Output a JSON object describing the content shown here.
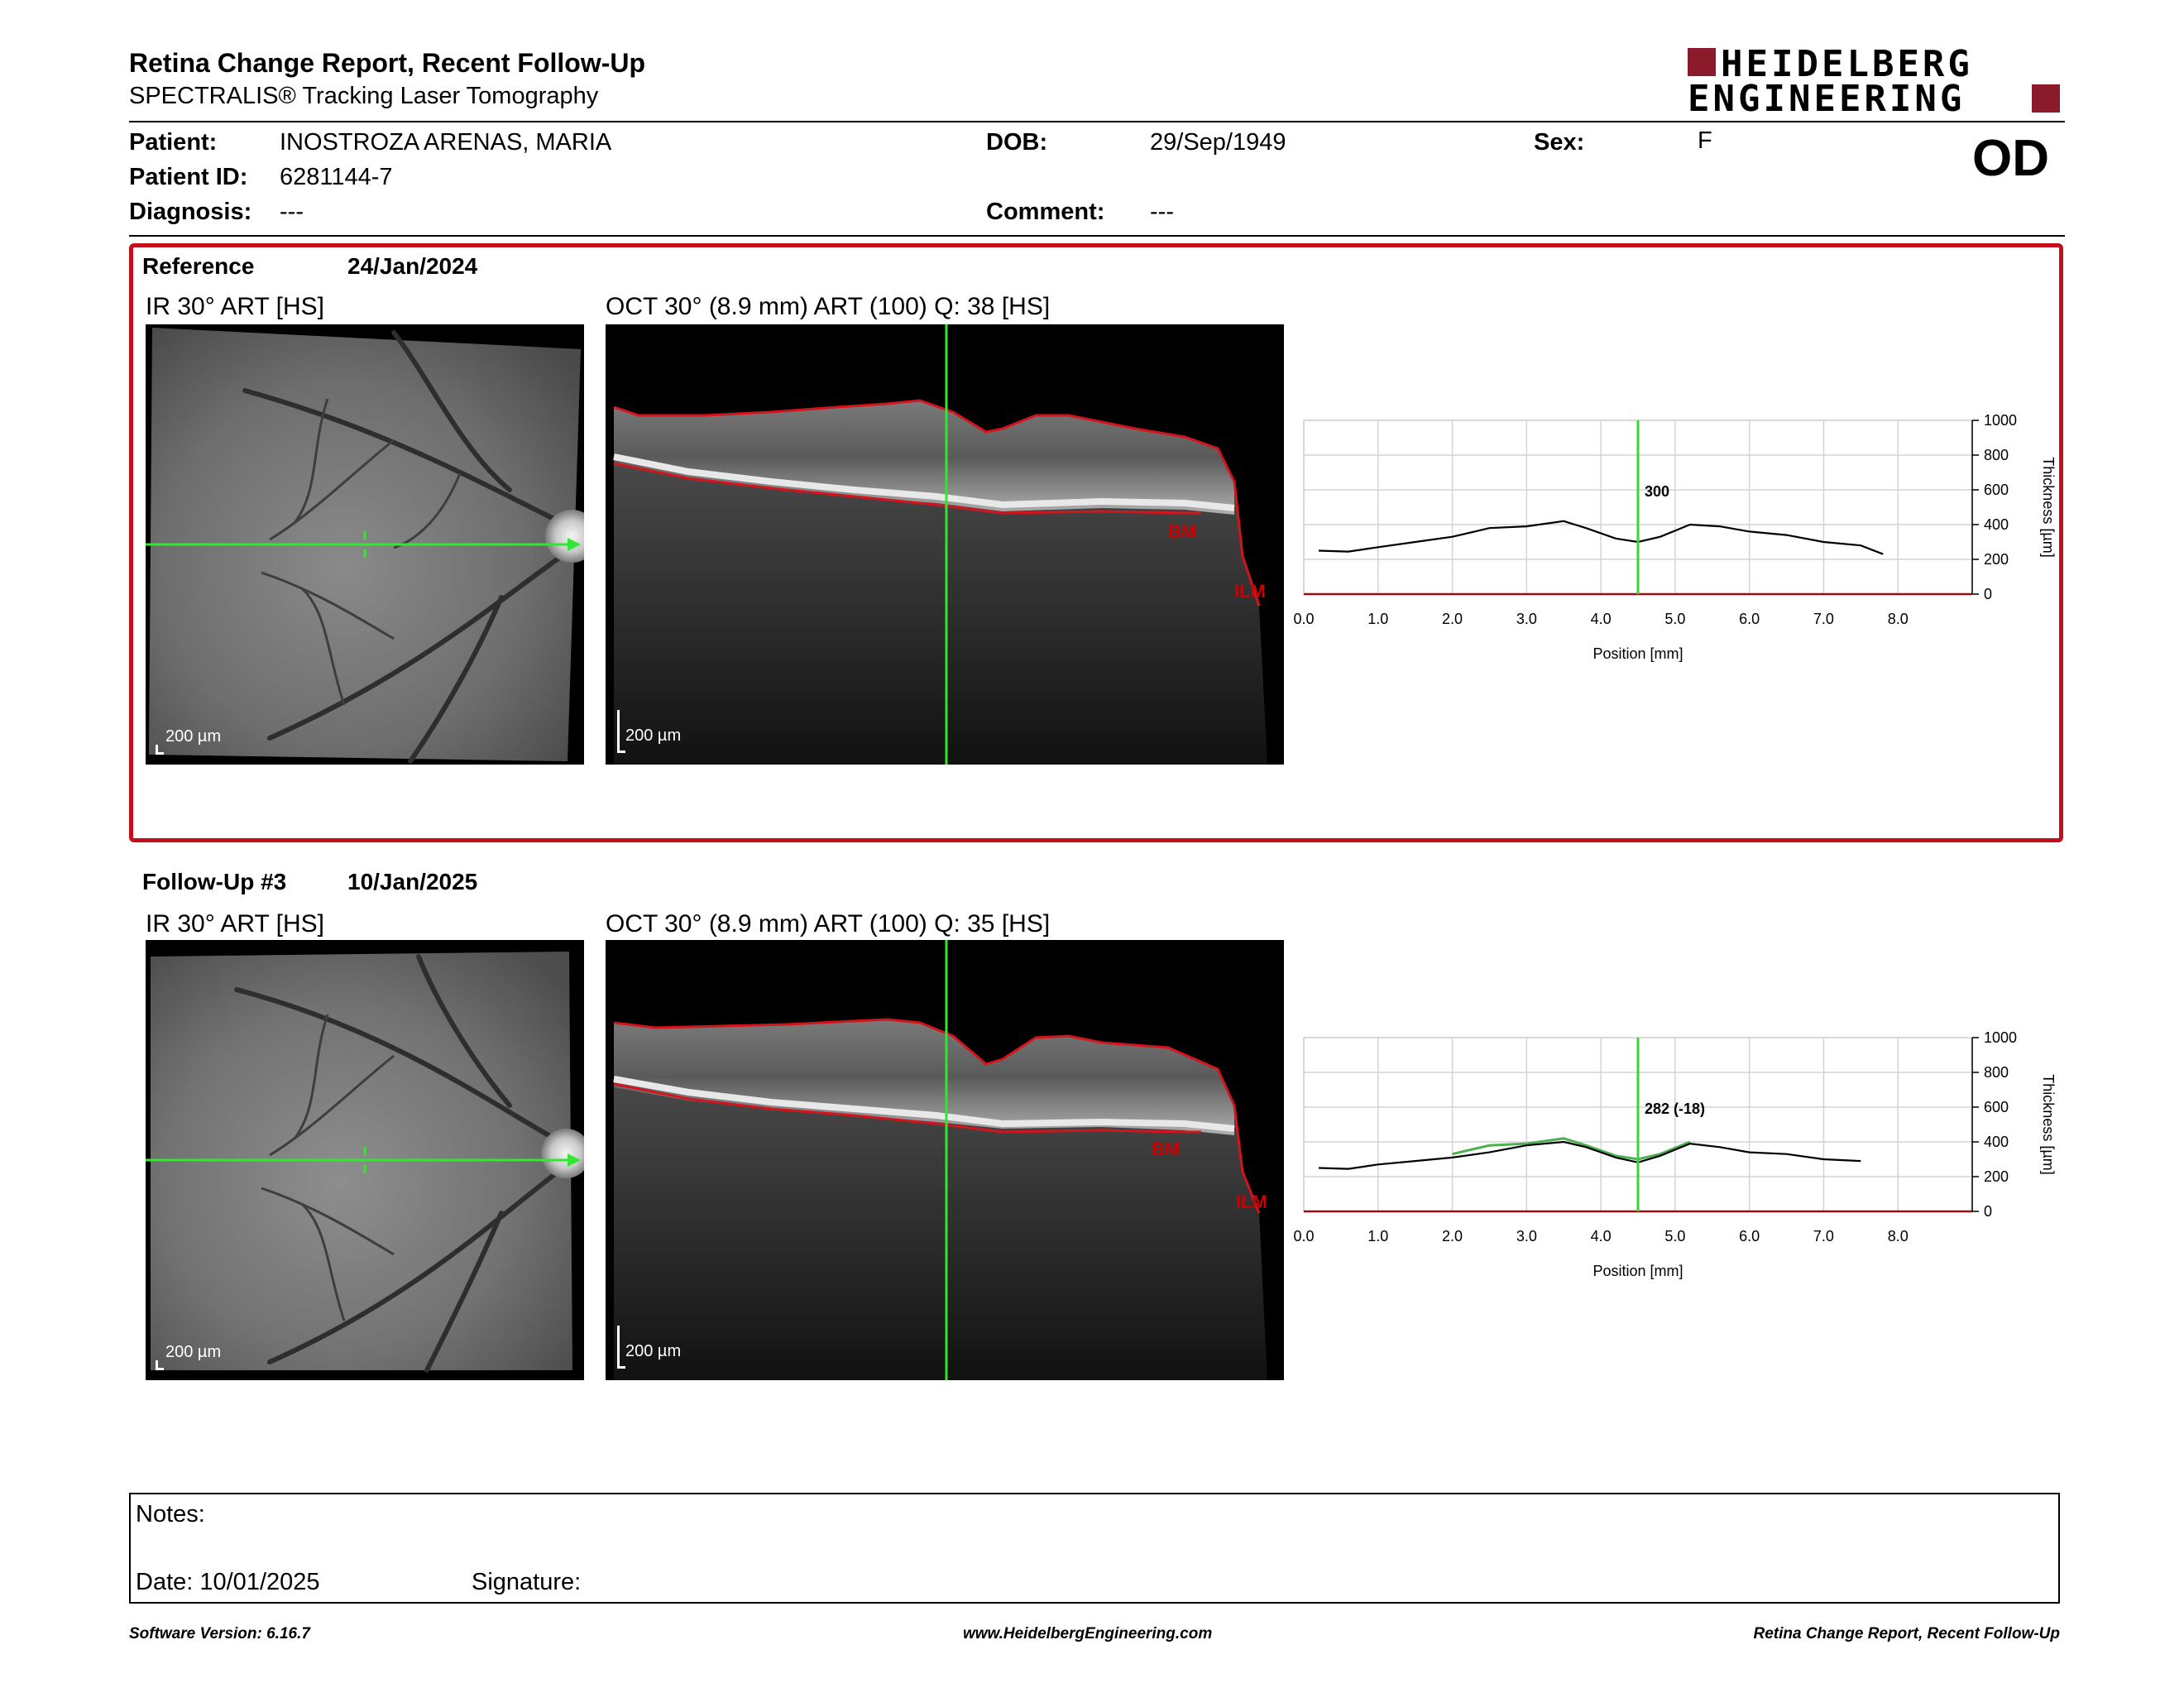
{
  "header": {
    "title": "Retina Change Report, Recent Follow-Up",
    "subtitle": "SPECTRALIS® Tracking Laser Tomography",
    "logo_line1": "HEIDELBERG",
    "logo_line2": "ENGINEERING",
    "eye": "OD"
  },
  "patient": {
    "patient_label": "Patient:",
    "patient_value": "INOSTROZA ARENAS, MARIA",
    "id_label": "Patient ID:",
    "id_value": "6281144-7",
    "diagnosis_label": "Diagnosis:",
    "diagnosis_value": "---",
    "dob_label": "DOB:",
    "dob_value": "29/Sep/1949",
    "comment_label": "Comment:",
    "comment_value": "---",
    "sex_label": "Sex:",
    "sex_value": "F"
  },
  "reference": {
    "label": "Reference",
    "date": "24/Jan/2024",
    "ir_title": "IR 30° ART [HS]",
    "oct_title": "OCT 30° (8.9 mm) ART (100) Q: 38 [HS]",
    "scale": "200 µm",
    "bm_label": "BM",
    "ilm_label": "ILM",
    "marker_value": "300"
  },
  "followup": {
    "label": "Follow-Up #3",
    "date": "10/Jan/2025",
    "ir_title": "IR 30° ART [HS]",
    "oct_title": "OCT 30° (8.9 mm) ART (100) Q: 35 [HS]",
    "scale": "200 µm",
    "bm_label": "BM",
    "ilm_label": "ILM",
    "marker_value": "282 (-18)"
  },
  "chart_data": [
    {
      "type": "line",
      "xlabel": "Position [mm]",
      "ylabel": "Thickness [µm]",
      "xlim": [
        0,
        9
      ],
      "ylim": [
        0,
        1000
      ],
      "x_ticks": [
        "0.0",
        "1.0",
        "2.0",
        "3.0",
        "4.0",
        "5.0",
        "6.0",
        "7.0",
        "8.0"
      ],
      "y_ticks": [
        "0",
        "200",
        "400",
        "600",
        "800",
        "1000"
      ],
      "marker_x": 4.5,
      "marker_label": "300",
      "series": [
        {
          "x": [
            0.2,
            0.6,
            1.0,
            1.5,
            2.0,
            2.5,
            3.0,
            3.5,
            3.8,
            4.2,
            4.5,
            4.8,
            5.2,
            5.6,
            6.0,
            6.5,
            7.0,
            7.5,
            7.8
          ],
          "values": [
            250,
            245,
            270,
            300,
            330,
            380,
            390,
            420,
            380,
            320,
            300,
            330,
            400,
            390,
            360,
            340,
            300,
            280,
            230
          ]
        }
      ]
    },
    {
      "type": "line",
      "xlabel": "Position [mm]",
      "ylabel": "Thickness [µm]",
      "xlim": [
        0,
        9
      ],
      "ylim": [
        0,
        1000
      ],
      "x_ticks": [
        "0.0",
        "1.0",
        "2.0",
        "3.0",
        "4.0",
        "5.0",
        "6.0",
        "7.0",
        "8.0"
      ],
      "y_ticks": [
        "0",
        "200",
        "400",
        "600",
        "800",
        "1000"
      ],
      "marker_x": 4.5,
      "marker_label": "282 (-18)",
      "series": [
        {
          "x": [
            0.2,
            0.6,
            1.0,
            1.5,
            2.0,
            2.5,
            3.0,
            3.5,
            3.8,
            4.2,
            4.5,
            4.8,
            5.2,
            5.6,
            6.0,
            6.5,
            7.0,
            7.5
          ],
          "values": [
            250,
            245,
            270,
            290,
            310,
            340,
            380,
            400,
            370,
            310,
            282,
            320,
            390,
            370,
            340,
            330,
            300,
            290
          ]
        },
        {
          "x": [
            2.0,
            2.5,
            3.0,
            3.5,
            3.8,
            4.2,
            4.5,
            4.8,
            5.2
          ],
          "values": [
            330,
            380,
            390,
            420,
            380,
            320,
            300,
            330,
            400
          ]
        }
      ]
    }
  ],
  "notes": {
    "notes_label": "Notes:",
    "date_label": "Date: 10/01/2025",
    "signature_label": "Signature:"
  },
  "footer": {
    "left": "Software Version: 6.16.7",
    "center": "www.HeidelbergEngineering.com",
    "right": "Retina Change Report, Recent Follow-Up"
  },
  "colors": {
    "accent_red": "#c40e1c",
    "logo_red": "#8b1a2b",
    "marker_green": "#3ad43a",
    "segment_red": "#d4141c"
  }
}
